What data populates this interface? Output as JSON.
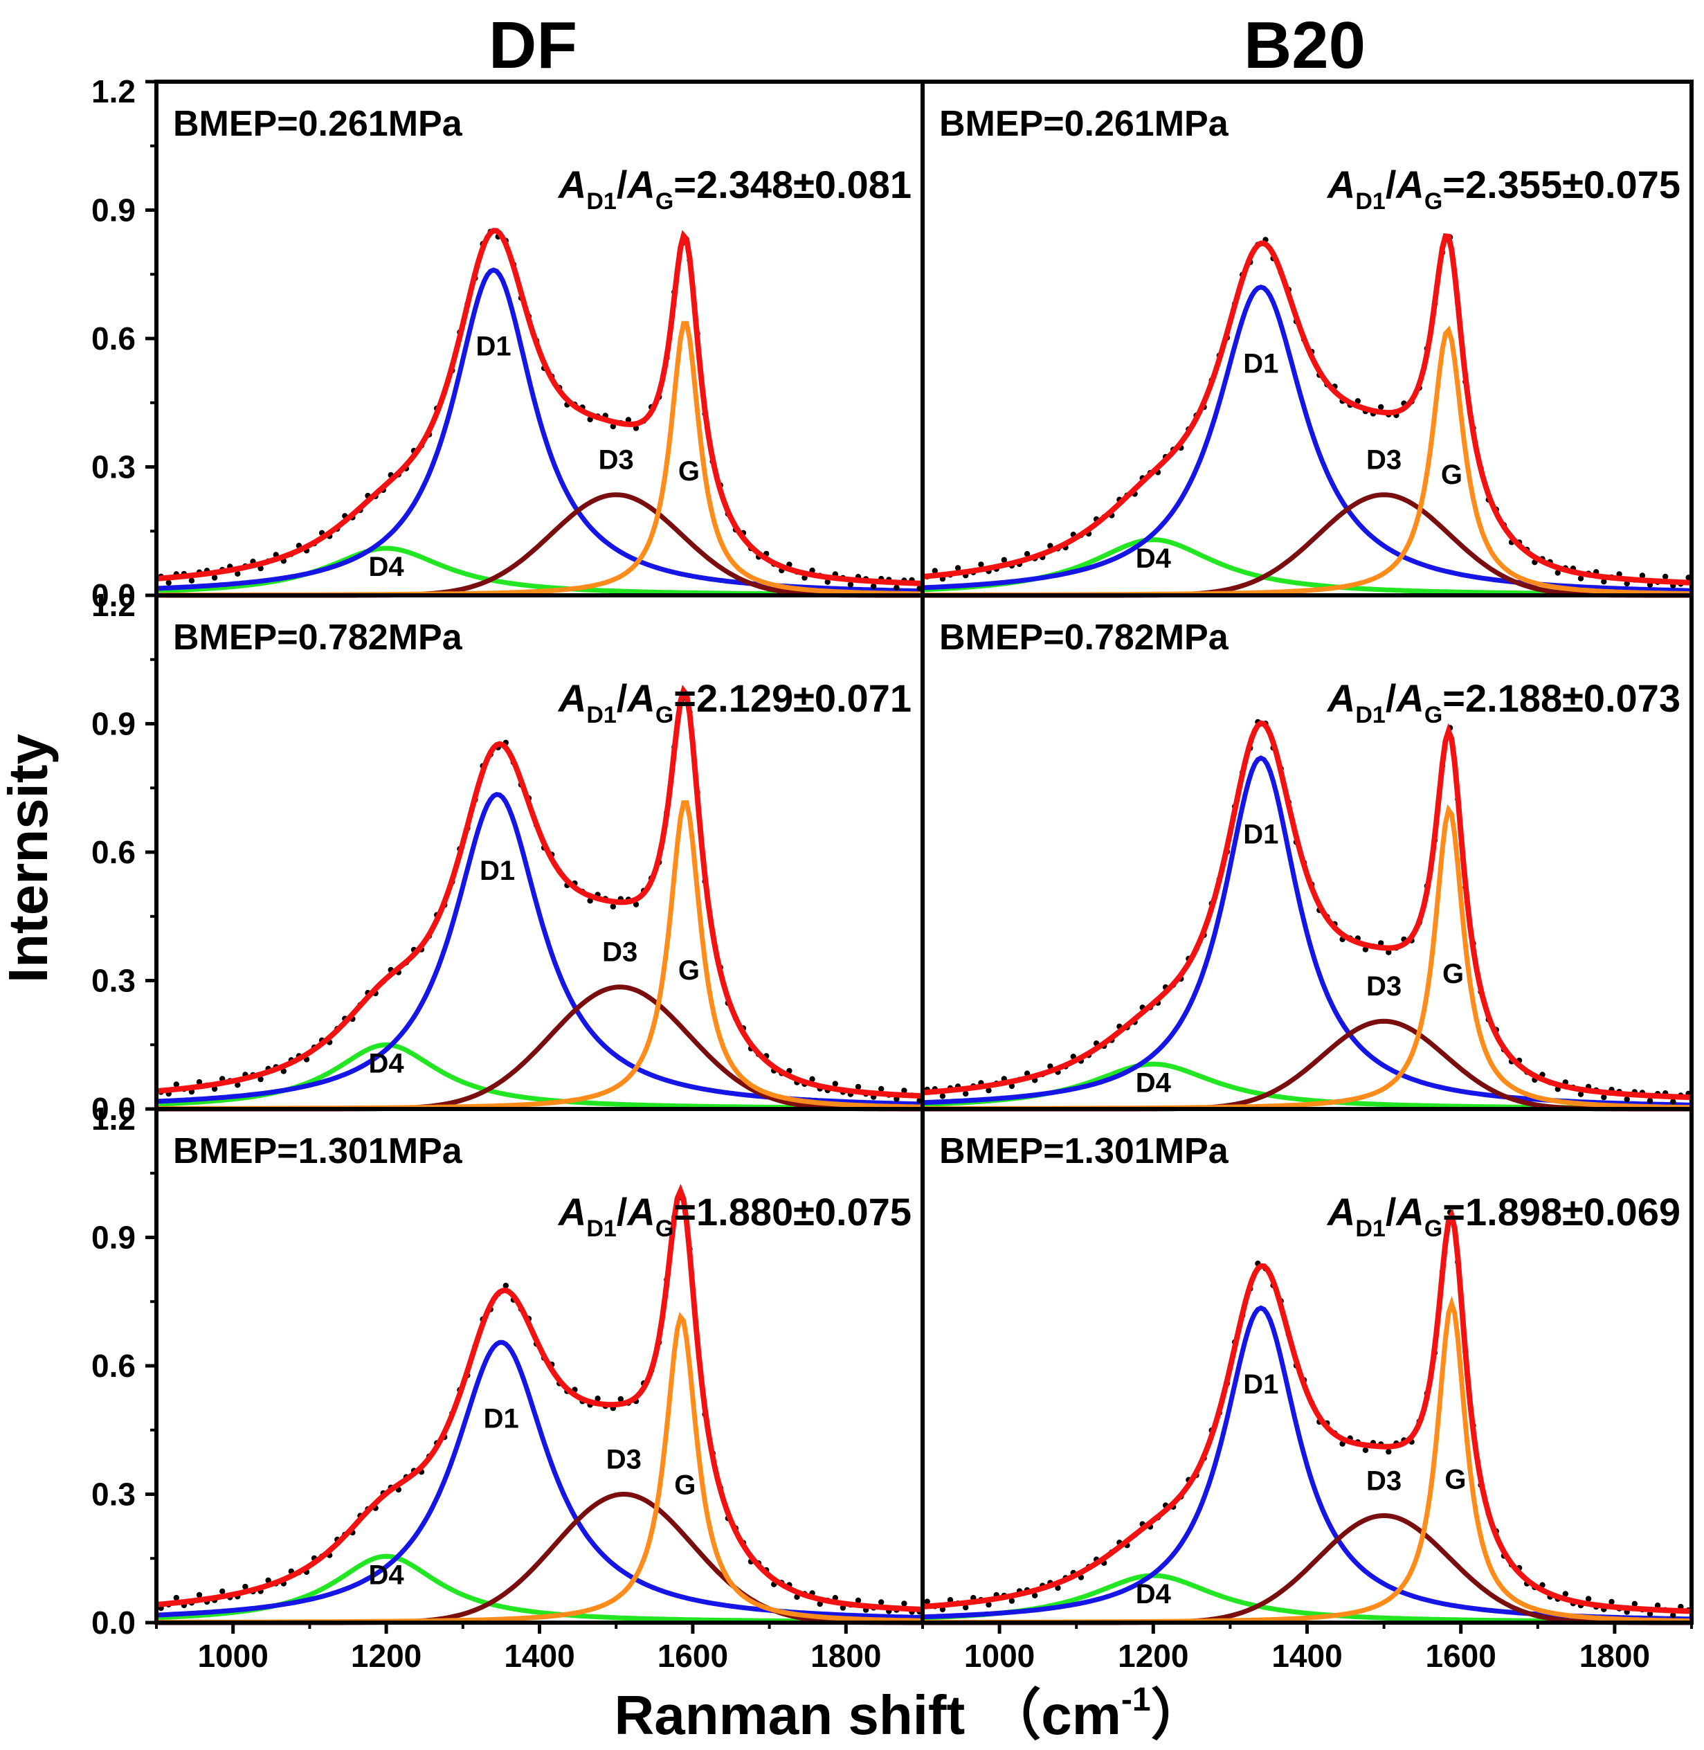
{
  "chart_data": {
    "type": "line",
    "columns": [
      "DF",
      "B20"
    ],
    "xlabel": "Ranman shift",
    "xlabel_unit": "（cm",
    "xlabel_exp": "-1",
    "xlabel_close": "）",
    "ylabel": "Internsity",
    "xlim": [
      900,
      1900
    ],
    "ylim": [
      0,
      1.2
    ],
    "x_ticks": [
      "1000",
      "1200",
      "1400",
      "1600",
      "1800"
    ],
    "y_ticks": [
      "0.0",
      "0.3",
      "0.6",
      "0.9",
      "1.2"
    ],
    "ratio_parts": [
      "A",
      "D1",
      "/",
      "A",
      "G",
      "="
    ],
    "series_colors": {
      "D1": "#1515e6",
      "D3": "#7a0e0e",
      "D4": "#22e622",
      "G": "#ff8c1a",
      "fit": "#f21212",
      "measured": "#000000"
    },
    "panels": [
      {
        "column": "DF",
        "bmep": "BMEP=0.261MPa",
        "ratio": "2.348±0.081",
        "peaks": {
          "D4": {
            "center": 1200,
            "height": 0.11,
            "width": 95
          },
          "D1": {
            "center": 1340,
            "height": 0.76,
            "width": 65
          },
          "D3": {
            "center": 1500,
            "height": 0.235,
            "width": 85
          },
          "G": {
            "center": 1590,
            "height": 0.64,
            "width": 23
          }
        },
        "labels": {
          "D1": "D1",
          "D3": "D3",
          "D4": "D4",
          "G": "G"
        }
      },
      {
        "column": "B20",
        "bmep": "BMEP=0.261MPa",
        "ratio": "2.355±0.075",
        "peaks": {
          "D4": {
            "center": 1200,
            "height": 0.13,
            "width": 100
          },
          "D1": {
            "center": 1340,
            "height": 0.72,
            "width": 70
          },
          "D3": {
            "center": 1500,
            "height": 0.235,
            "width": 85
          },
          "G": {
            "center": 1583,
            "height": 0.62,
            "width": 25
          }
        },
        "labels": {
          "D1": "D1",
          "D3": "D3",
          "D4": "D4",
          "G": "G"
        }
      },
      {
        "column": "DF",
        "bmep": "BMEP=0.782MPa",
        "ratio": "2.129±0.071",
        "peaks": {
          "D4": {
            "center": 1200,
            "height": 0.15,
            "width": 85
          },
          "D1": {
            "center": 1345,
            "height": 0.735,
            "width": 70
          },
          "D3": {
            "center": 1505,
            "height": 0.285,
            "width": 90
          },
          "G": {
            "center": 1590,
            "height": 0.72,
            "width": 25
          }
        },
        "labels": {
          "D1": "D1",
          "D3": "D3",
          "D4": "D4",
          "G": "G"
        }
      },
      {
        "column": "B20",
        "bmep": "BMEP=0.782MPa",
        "ratio": "2.188±0.073",
        "peaks": {
          "D4": {
            "center": 1200,
            "height": 0.105,
            "width": 100
          },
          "D1": {
            "center": 1340,
            "height": 0.82,
            "width": 60
          },
          "D3": {
            "center": 1500,
            "height": 0.205,
            "width": 80
          },
          "G": {
            "center": 1585,
            "height": 0.7,
            "width": 23
          }
        },
        "labels": {
          "D1": "D1",
          "D3": "D3",
          "D4": "D4",
          "G": "G"
        }
      },
      {
        "column": "DF",
        "bmep": "BMEP=1.301MPa",
        "ratio": "1.880±0.075",
        "peaks": {
          "D4": {
            "center": 1200,
            "height": 0.155,
            "width": 85
          },
          "D1": {
            "center": 1350,
            "height": 0.655,
            "width": 75
          },
          "D3": {
            "center": 1510,
            "height": 0.3,
            "width": 90
          },
          "G": {
            "center": 1585,
            "height": 0.715,
            "width": 25
          }
        },
        "labels": {
          "D1": "D1",
          "D3": "D3",
          "D4": "D4",
          "G": "G"
        }
      },
      {
        "column": "B20",
        "bmep": "BMEP=1.301MPa",
        "ratio": "1.898±0.069",
        "peaks": {
          "D4": {
            "center": 1200,
            "height": 0.11,
            "width": 100
          },
          "D1": {
            "center": 1340,
            "height": 0.735,
            "width": 60
          },
          "D3": {
            "center": 1500,
            "height": 0.25,
            "width": 85
          },
          "G": {
            "center": 1588,
            "height": 0.745,
            "width": 23
          }
        },
        "labels": {
          "D1": "D1",
          "D3": "D3",
          "D4": "D4",
          "G": "G"
        }
      }
    ]
  }
}
